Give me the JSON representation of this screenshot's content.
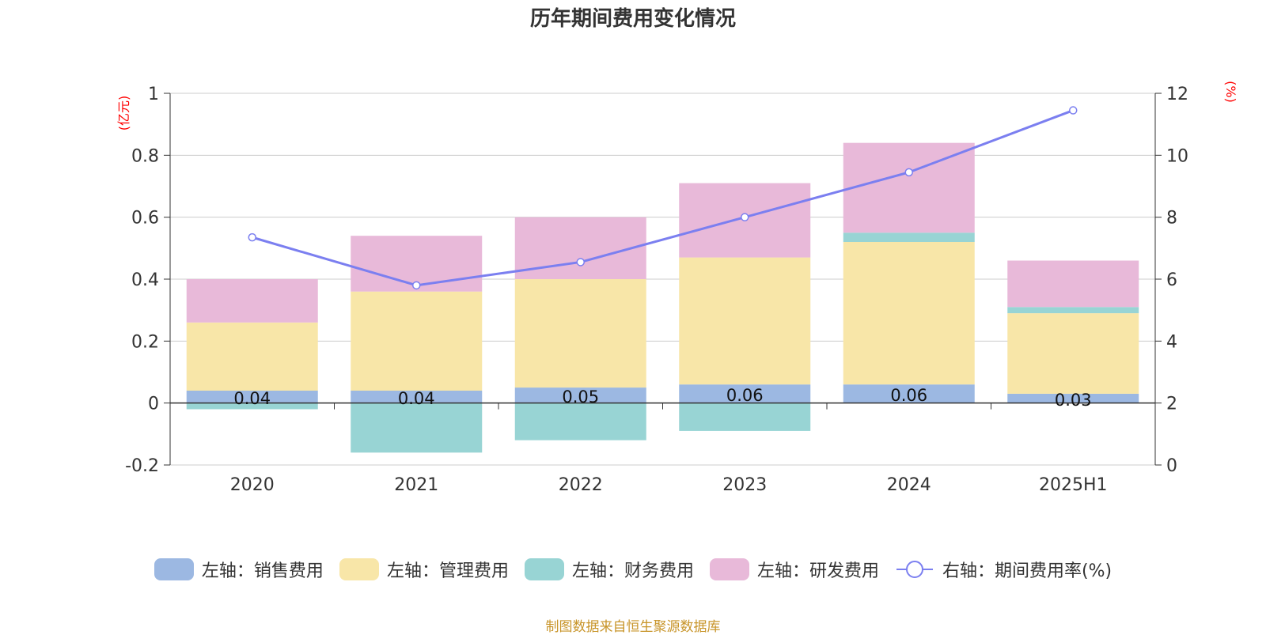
{
  "chart_data": {
    "type": "bar",
    "title": "历年期间费用变化情况",
    "categories": [
      "2020",
      "2021",
      "2022",
      "2023",
      "2024",
      "2025H1"
    ],
    "left_axis": {
      "unit": "(亿元)",
      "ylim": [
        -0.2,
        1
      ],
      "ticks": [
        "1",
        "0.8",
        "0.6",
        "0.4",
        "0.2",
        "0",
        "-0.2"
      ]
    },
    "right_axis": {
      "unit": "(%)",
      "ylim": [
        0,
        12
      ],
      "ticks": [
        "12",
        "10",
        "8",
        "6",
        "4",
        "2",
        "0"
      ]
    },
    "series": [
      {
        "name": "左轴：销售费用",
        "axis": "left",
        "color": "#9cb8e2",
        "values": [
          0.04,
          0.04,
          0.05,
          0.06,
          0.06,
          0.03
        ],
        "labels": [
          "0.04",
          "0.04",
          "0.05",
          "0.06",
          "0.06",
          "0.03"
        ]
      },
      {
        "name": "左轴：管理费用",
        "axis": "left",
        "color": "#f8e6a8",
        "values": [
          0.22,
          0.32,
          0.35,
          0.41,
          0.46,
          0.26
        ]
      },
      {
        "name": "左轴：财务费用",
        "axis": "left",
        "color": "#98d4d4",
        "values": [
          -0.02,
          -0.16,
          -0.12,
          -0.09,
          0.03,
          0.02
        ]
      },
      {
        "name": "左轴：研发费用",
        "axis": "left",
        "color": "#e8b9d9",
        "values": [
          0.14,
          0.18,
          0.2,
          0.24,
          0.29,
          0.15
        ]
      },
      {
        "name": "右轴：期间费用率(%)",
        "axis": "right",
        "type": "line",
        "color": "#7b7ff0",
        "values": [
          7.35,
          5.8,
          6.55,
          8.0,
          9.45,
          11.45
        ]
      }
    ],
    "grid": true,
    "legend_position": "bottom"
  },
  "source": "制图数据来自恒生聚源数据库"
}
